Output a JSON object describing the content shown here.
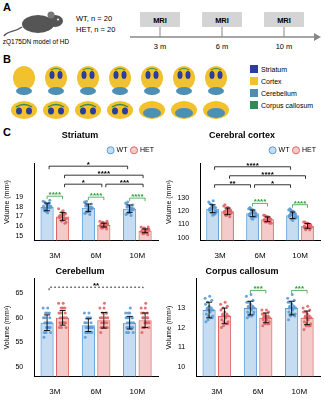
{
  "panels": [
    "A",
    "B",
    "C"
  ],
  "model": {
    "label": "zQ175DN model of HD",
    "groups": [
      "WT, n = 20",
      "HET, n = 20"
    ]
  },
  "timeline": {
    "label": "MRI",
    "times": [
      "3 m",
      "6 m",
      "10 m"
    ]
  },
  "regions": [
    {
      "name": "Striatum",
      "color": "#2c3e9a"
    },
    {
      "name": "Cortex",
      "color": "#f2c12e"
    },
    {
      "name": "Cerebellum",
      "color": "#4d8fb3"
    },
    {
      "name": "Corpus callosum",
      "color": "#2e8b57"
    }
  ],
  "chart_data": [
    {
      "type": "bar",
      "title": "Striatum",
      "y_label": "Volume (mm³)",
      "categories": [
        "3M",
        "6M",
        "10M"
      ],
      "ylim": [
        14.5,
        22.5
      ],
      "yticks": [
        15,
        16,
        17,
        18,
        19
      ],
      "grid": false,
      "legend": "upper right",
      "series": [
        {
          "name": "WT",
          "color": "#5b9bd5",
          "values": [
            18.0,
            17.9,
            17.8
          ],
          "errors": [
            0.4,
            0.4,
            0.4
          ],
          "points": [
            [
              18.6,
              18.3,
              17.9,
              18.1,
              17.5,
              18.4,
              17.8,
              18.0,
              18.7,
              17.6,
              18.2,
              17.9,
              18.5,
              17.4,
              18.1,
              17.8,
              18.3,
              18.0,
              17.7,
              18.2
            ],
            [
              18.5,
              17.6,
              18.0,
              17.3,
              18.2,
              17.8,
              18.4,
              17.5,
              17.9,
              18.1,
              17.7,
              18.3,
              17.4,
              18.0,
              17.8,
              18.6,
              17.6,
              17.9,
              18.1,
              17.2
            ],
            [
              18.4,
              17.5,
              17.9,
              17.2,
              18.1,
              17.7,
              18.3,
              17.4,
              17.8,
              18.0,
              17.6,
              18.2,
              17.3,
              17.9,
              17.7,
              18.5,
              17.5,
              17.8,
              18.0,
              17.1
            ]
          ]
        },
        {
          "name": "HET",
          "color": "#e06666",
          "values": [
            17.0,
            16.1,
            15.5
          ],
          "errors": [
            0.4,
            0.2,
            0.2
          ],
          "points": [
            [
              17.8,
              16.5,
              17.2,
              16.9,
              17.5,
              16.3,
              17.0,
              17.4,
              16.8,
              17.1,
              16.6,
              17.3,
              16.9,
              17.6,
              16.4,
              17.0,
              17.2,
              16.8,
              17.1,
              16.9
            ],
            [
              16.5,
              15.8,
              16.2,
              16.0,
              16.4,
              15.9,
              16.1,
              16.3,
              15.7,
              16.2,
              16.0,
              16.5,
              15.8,
              16.1,
              16.3,
              15.9,
              16.0,
              16.2,
              16.4,
              15.9
            ],
            [
              15.9,
              15.2,
              15.6,
              15.4,
              15.8,
              15.3,
              15.5,
              15.7,
              15.1,
              15.6,
              15.4,
              15.9,
              15.2,
              15.5,
              15.7,
              15.3,
              15.4,
              15.6,
              15.8,
              15.3
            ]
          ]
        }
      ],
      "comparisons": [
        {
          "from": {
            "series": "WT",
            "category": "3M"
          },
          "to": {
            "series": "HET",
            "category": "3M"
          },
          "label": "****",
          "color": "#2e9e3e"
        },
        {
          "from": {
            "series": "WT",
            "category": "6M"
          },
          "to": {
            "series": "HET",
            "category": "6M"
          },
          "label": "****",
          "color": "#2e9e3e"
        },
        {
          "from": {
            "series": "WT",
            "category": "10M"
          },
          "to": {
            "series": "HET",
            "category": "10M"
          },
          "label": "****",
          "color": "#2e9e3e"
        },
        {
          "from": {
            "series": "HET",
            "category": "3M"
          },
          "to": {
            "series": "HET",
            "category": "6M"
          },
          "label": "*",
          "color": "#000000"
        },
        {
          "from": {
            "series": "HET",
            "category": "6M"
          },
          "to": {
            "series": "HET",
            "category": "10M"
          },
          "label": "***",
          "color": "#000000"
        },
        {
          "from": {
            "series": "HET",
            "category": "3M"
          },
          "to": {
            "series": "HET",
            "category": "10M"
          },
          "label": "****",
          "color": "#000000"
        },
        {
          "from": {
            "series": "WT",
            "category": "3M"
          },
          "to": {
            "series": "WT",
            "category": "10M"
          },
          "label": "*",
          "color": "#000000"
        }
      ]
    },
    {
      "type": "bar",
      "title": "Cerebral cortex",
      "y_label": "Volume (mm³)",
      "categories": [
        "3M",
        "6M",
        "10M"
      ],
      "ylim": [
        98,
        156
      ],
      "yticks": [
        100,
        110,
        120,
        130
      ],
      "grid": false,
      "legend": "upper right",
      "series": [
        {
          "name": "WT",
          "color": "#5b9bd5",
          "values": [
            122,
            118.5,
            117
          ],
          "errors": [
            3,
            2.5,
            2.5
          ],
          "points": [
            [
              127,
              119,
              123,
              121,
              125,
              118,
              122,
              124,
              120,
              126,
              117,
              123,
              121,
              128,
              119,
              122,
              124,
              120,
              123,
              118
            ],
            [
              122,
              115,
              119,
              117,
              121,
              116,
              118,
              120,
              117,
              123,
              114,
              119,
              118,
              121,
              116,
              119,
              120,
              117,
              122,
              116
            ],
            [
              121,
              114,
              118,
              116,
              120,
              115,
              117,
              119,
              116,
              122,
              113,
              118,
              117,
              120,
              115,
              118,
              119,
              116,
              121,
              115
            ]
          ]
        },
        {
          "name": "HET",
          "color": "#e06666",
          "values": [
            120,
            114,
            109
          ],
          "errors": [
            2.5,
            1.8,
            1.8
          ],
          "points": [
            [
              124,
              117,
              121,
              119,
              123,
              116,
              120,
              122,
              118,
              125,
              119,
              121,
              118,
              123,
              120,
              117,
              122,
              119,
              121,
              120
            ],
            [
              117,
              112,
              115,
              113,
              116,
              111,
              114,
              115,
              112,
              117,
              113,
              114,
              112,
              116,
              114,
              113,
              115,
              111,
              116,
              114
            ],
            [
              112,
              107,
              110,
              108,
              111,
              106,
              109,
              111,
              107,
              112,
              108,
              110,
              107,
              111,
              109,
              106,
              110,
              108,
              111,
              109
            ]
          ]
        }
      ],
      "comparisons": [
        {
          "from": {
            "series": "WT",
            "category": "6M"
          },
          "to": {
            "series": "HET",
            "category": "6M"
          },
          "label": "****",
          "color": "#2e9e3e"
        },
        {
          "from": {
            "series": "WT",
            "category": "10M"
          },
          "to": {
            "series": "HET",
            "category": "10M"
          },
          "label": "****",
          "color": "#2e9e3e"
        },
        {
          "from": {
            "series": "WT",
            "category": "3M"
          },
          "to": {
            "series": "WT",
            "category": "6M"
          },
          "label": "**",
          "color": "#000000"
        },
        {
          "from": {
            "series": "WT",
            "category": "6M"
          },
          "to": {
            "series": "WT",
            "category": "10M"
          },
          "label": "*",
          "color": "#000000"
        },
        {
          "from": {
            "series": "HET",
            "category": "3M"
          },
          "to": {
            "series": "HET",
            "category": "10M"
          },
          "label": "****",
          "color": "#000000"
        },
        {
          "from": {
            "series": "WT",
            "category": "3M"
          },
          "to": {
            "series": "WT",
            "category": "10M"
          },
          "label": "****",
          "color": "#000000"
        }
      ]
    },
    {
      "type": "bar",
      "title": "Cerebellum",
      "y_label": "Volume (mm³)",
      "categories": [
        "3M",
        "6M",
        "10M"
      ],
      "ylim": [
        48,
        68
      ],
      "yticks": [
        50,
        55,
        60,
        65
      ],
      "grid": false,
      "series": [
        {
          "name": "WT",
          "color": "#5b9bd5",
          "values": [
            59,
            58.5,
            59
          ],
          "errors": [
            1.6,
            1.3,
            1.3
          ],
          "points": [
            [
              62,
              57,
              59,
              60,
              58,
              61,
              56,
              59,
              60,
              57,
              61,
              58,
              59,
              62,
              57,
              60,
              58,
              59,
              61,
              58
            ],
            [
              61,
              57,
              58,
              59,
              57,
              60,
              56,
              58,
              59,
              57,
              60,
              58,
              58,
              61,
              57,
              59,
              58,
              58,
              60,
              57
            ],
            [
              61,
              57,
              59,
              60,
              58,
              60,
              57,
              59,
              60,
              58,
              61,
              58,
              59,
              62,
              57,
              60,
              58,
              59,
              61,
              58
            ]
          ]
        },
        {
          "name": "HET",
          "color": "#e06666",
          "values": [
            60,
            59.5,
            59.5
          ],
          "errors": [
            1.5,
            1.6,
            1.5
          ],
          "points": [
            [
              63,
              58,
              60,
              61,
              59,
              62,
              58,
              60,
              61,
              59,
              62,
              59,
              60,
              63,
              58,
              61,
              59,
              60,
              62,
              59
            ],
            [
              62,
              58,
              60,
              60,
              58,
              61,
              57,
              59,
              61,
              58,
              62,
              59,
              59,
              63,
              58,
              60,
              59,
              60,
              61,
              58
            ],
            [
              62,
              58,
              60,
              61,
              58,
              61,
              57,
              59,
              60,
              58,
              62,
              59,
              60,
              63,
              58,
              60,
              59,
              59,
              61,
              59
            ]
          ]
        }
      ],
      "comparisons": [
        {
          "from": {
            "series": "WT",
            "category": "3M"
          },
          "to": {
            "series": "HET",
            "category": "10M"
          },
          "label": "**",
          "color": "#000000",
          "line_style": "dotted"
        }
      ]
    },
    {
      "type": "bar",
      "title": "Corpus callosum",
      "y_label": "Volume (mm³)",
      "categories": [
        "3M",
        "6M",
        "10M"
      ],
      "ylim": [
        9.5,
        14.5
      ],
      "yticks": [
        10,
        11,
        12,
        13
      ],
      "grid": false,
      "series": [
        {
          "name": "WT",
          "color": "#5b9bd5",
          "values": [
            12.9,
            13.0,
            13.0
          ],
          "errors": [
            0.4,
            0.35,
            0.35
          ],
          "points": [
            [
              13.5,
              12.4,
              12.9,
              13.2,
              12.6,
              13.0,
              12.3,
              12.9,
              13.4,
              12.7,
              13.1,
              12.5,
              12.9,
              13.6,
              12.6,
              13.0,
              12.8,
              12.9,
              13.3,
              12.5
            ],
            [
              13.6,
              12.6,
              13.0,
              13.3,
              12.7,
              13.1,
              12.5,
              13.0,
              13.4,
              12.8,
              13.2,
              12.7,
              13.0,
              13.7,
              12.8,
              13.1,
              12.9,
              13.0,
              13.3,
              12.6
            ],
            [
              13.5,
              12.6,
              13.0,
              13.3,
              12.7,
              13.1,
              12.4,
              13.0,
              13.4,
              12.8,
              13.2,
              12.6,
              13.0,
              13.7,
              12.7,
              13.1,
              12.9,
              13.0,
              13.3,
              12.7
            ]
          ]
        },
        {
          "name": "HET",
          "color": "#e06666",
          "values": [
            12.6,
            12.5,
            12.5
          ],
          "errors": [
            0.4,
            0.25,
            0.35
          ],
          "points": [
            [
              13.2,
              12.1,
              12.6,
              12.9,
              12.3,
              12.7,
              12.0,
              12.6,
              13.1,
              12.4,
              12.8,
              12.2,
              12.6,
              13.3,
              12.3,
              12.7,
              12.5,
              12.6,
              13.0,
              12.2
            ],
            [
              12.9,
              12.2,
              12.5,
              12.7,
              12.3,
              12.6,
              12.1,
              12.5,
              12.8,
              12.4,
              12.6,
              12.2,
              12.5,
              12.9,
              12.3,
              12.6,
              12.4,
              12.5,
              12.7,
              12.2
            ],
            [
              13.0,
              12.1,
              12.5,
              12.8,
              12.2,
              12.6,
              11.9,
              12.5,
              12.9,
              12.3,
              12.7,
              12.1,
              12.5,
              13.1,
              12.2,
              12.6,
              12.4,
              12.5,
              12.8,
              12.1
            ]
          ]
        }
      ],
      "comparisons": [
        {
          "from": {
            "series": "WT",
            "category": "6M"
          },
          "to": {
            "series": "HET",
            "category": "6M"
          },
          "label": "***",
          "color": "#2e9e3e"
        },
        {
          "from": {
            "series": "WT",
            "category": "10M"
          },
          "to": {
            "series": "HET",
            "category": "10M"
          },
          "label": "***",
          "color": "#2e9e3e"
        }
      ]
    }
  ]
}
